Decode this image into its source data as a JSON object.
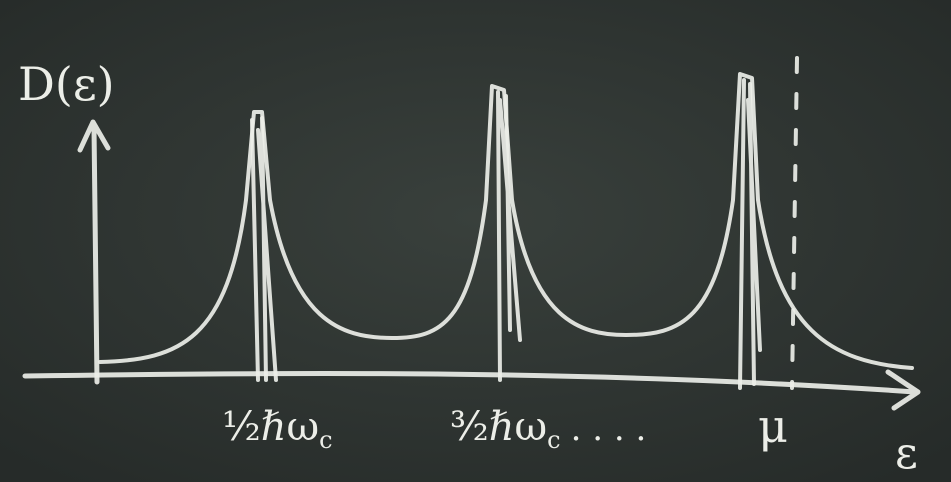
{
  "y_axis_label": "D(ε)",
  "x_axis_label": "ε",
  "peak_labels": [
    {
      "text": "½ℏω",
      "subscript": "c"
    },
    {
      "text": "³⁄₂ℏω",
      "subscript": "c",
      "suffix": ". . . ."
    }
  ],
  "mu_label": "μ"
}
